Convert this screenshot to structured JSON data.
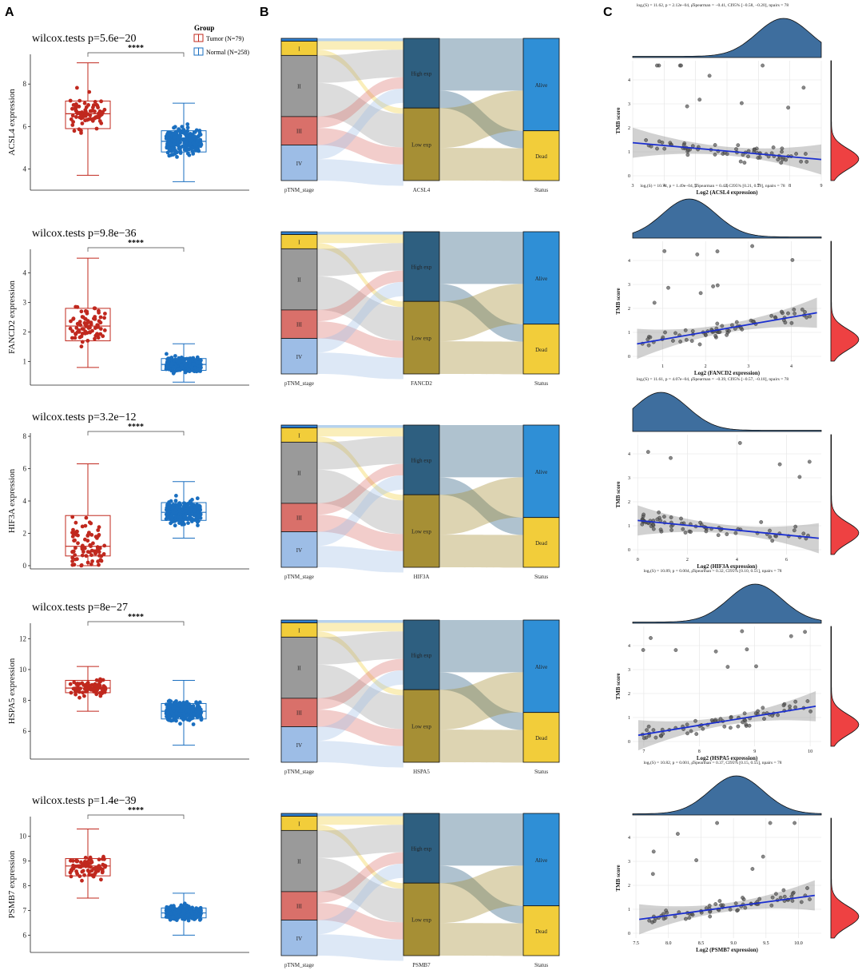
{
  "panel_labels": [
    "A",
    "B",
    "C"
  ],
  "colors": {
    "tumor": "#c0281e",
    "normal": "#1a6fc0",
    "stage_I": "#f2cd3a",
    "stage_II": "#9a9a9a",
    "stage_III": "#d9706a",
    "stage_IV": "#9dbde6",
    "stage_top": "#2f7fcf",
    "high_exp": "#2e5f80",
    "low_exp": "#a68f35",
    "alive": "#2f8fd6",
    "dead": "#f2cd3a",
    "density_top": "#3e6e9e",
    "density_right": "#ee4142",
    "fit_line": "#1b2fd0"
  },
  "legend": {
    "title": "Group",
    "items": [
      "Tumor (N=79)",
      "Normal (N=258)"
    ]
  },
  "chart_data": [
    {
      "panel": "A",
      "type": "box",
      "gene": "ACSL4",
      "title": "wilcox.tests p=5.6e−20",
      "signif": "****",
      "ylabel": "ACSL4 expression",
      "ylim": [
        3,
        9.4
      ],
      "yticks": [
        "4",
        "6",
        "8"
      ],
      "xcategories": [
        "Tumor",
        "Normal"
      ],
      "box": [
        {
          "group": "Tumor",
          "min": 3.7,
          "q1": 5.9,
          "median": 6.6,
          "q3": 7.2,
          "max": 9.0
        },
        {
          "group": "Normal",
          "min": 3.4,
          "q1": 4.8,
          "median": 5.3,
          "q3": 5.8,
          "max": 7.1
        }
      ]
    },
    {
      "panel": "A",
      "type": "box",
      "gene": "FANCD2",
      "title": "wilcox.tests p=9.8e−36",
      "signif": "****",
      "ylabel": "FANCD2 expression",
      "ylim": [
        0.2,
        4.8
      ],
      "yticks": [
        "1",
        "2",
        "3",
        "4"
      ],
      "xcategories": [
        "Tumor",
        "Normal"
      ],
      "box": [
        {
          "group": "Tumor",
          "min": 0.8,
          "q1": 1.7,
          "median": 2.2,
          "q3": 2.8,
          "max": 4.5
        },
        {
          "group": "Normal",
          "min": 0.3,
          "q1": 0.7,
          "median": 0.9,
          "q3": 1.1,
          "max": 1.6
        }
      ]
    },
    {
      "panel": "A",
      "type": "box",
      "gene": "HIF3A",
      "title": "wilcox.tests p=3.2e−12",
      "signif": "****",
      "ylabel": "HIF3A expression",
      "ylim": [
        -0.2,
        8.2
      ],
      "yticks": [
        "0",
        "2",
        "4",
        "6",
        "8"
      ],
      "xcategories": [
        "Tumor",
        "Normal"
      ],
      "box": [
        {
          "group": "Tumor",
          "min": 0.0,
          "q1": 0.6,
          "median": 1.2,
          "q3": 3.1,
          "max": 6.3
        },
        {
          "group": "Normal",
          "min": 1.7,
          "q1": 2.8,
          "median": 3.3,
          "q3": 3.9,
          "max": 5.2
        }
      ]
    },
    {
      "panel": "A",
      "type": "box",
      "gene": "HSPA5",
      "title": "wilcox.tests p=8e−27",
      "signif": "****",
      "ylabel": "HSPA5 expression",
      "ylim": [
        4.2,
        13
      ],
      "yticks": [
        "6",
        "8",
        "10",
        "12"
      ],
      "xcategories": [
        "Tumor",
        "Normal"
      ],
      "box": [
        {
          "group": "Tumor",
          "min": 7.3,
          "q1": 8.5,
          "median": 8.8,
          "q3": 9.3,
          "max": 10.2
        },
        {
          "group": "Normal",
          "min": 5.1,
          "q1": 6.8,
          "median": 7.3,
          "q3": 7.8,
          "max": 9.3
        }
      ]
    },
    {
      "panel": "A",
      "type": "box",
      "gene": "PSMB7",
      "title": "wilcox.tests p=1.4e−39",
      "signif": "****",
      "ylabel": "PSMB7 expression",
      "ylim": [
        5.3,
        10.8
      ],
      "yticks": [
        "6",
        "7",
        "8",
        "9",
        "10"
      ],
      "xcategories": [
        "Tumor",
        "Normal"
      ],
      "box": [
        {
          "group": "Tumor",
          "min": 7.5,
          "q1": 8.4,
          "median": 8.8,
          "q3": 9.1,
          "max": 10.3
        },
        {
          "group": "Normal",
          "min": 6.0,
          "q1": 6.7,
          "median": 6.9,
          "q3": 7.1,
          "max": 7.7
        }
      ]
    },
    {
      "panel": "B",
      "type": "sankey",
      "gene": "ACSL4",
      "axis_labels": [
        "pTNM_stage",
        "ACSL4",
        "Status"
      ],
      "stage": {
        "labels": [
          "I",
          "II",
          "III",
          "IV"
        ],
        "fractions": [
          0.02,
          0.1,
          0.43,
          0.2,
          0.25
        ]
      },
      "expr": {
        "labels": [
          "High exp",
          "Low exp"
        ],
        "fractions": [
          0.49,
          0.51
        ]
      },
      "status": {
        "labels": [
          "Alive",
          "Dead"
        ],
        "fractions": [
          0.65,
          0.35
        ]
      }
    },
    {
      "panel": "B",
      "type": "sankey",
      "gene": "FANCD2",
      "axis_labels": [
        "pTNM_stage",
        "FANCD2",
        "Status"
      ],
      "stage": {
        "labels": [
          "I",
          "II",
          "III",
          "IV"
        ],
        "fractions": [
          0.02,
          0.1,
          0.43,
          0.2,
          0.25
        ]
      },
      "expr": {
        "labels": [
          "High exp",
          "Low exp"
        ],
        "fractions": [
          0.49,
          0.51
        ]
      },
      "status": {
        "labels": [
          "Alive",
          "Dead"
        ],
        "fractions": [
          0.65,
          0.35
        ]
      }
    },
    {
      "panel": "B",
      "type": "sankey",
      "gene": "HIF3A",
      "axis_labels": [
        "pTNM_stage",
        "HIF3A",
        "Status"
      ],
      "stage": {
        "labels": [
          "I",
          "II",
          "III",
          "IV"
        ],
        "fractions": [
          0.02,
          0.1,
          0.43,
          0.2,
          0.25
        ]
      },
      "expr": {
        "labels": [
          "High exp",
          "Low exp"
        ],
        "fractions": [
          0.49,
          0.51
        ]
      },
      "status": {
        "labels": [
          "Alive",
          "Dead"
        ],
        "fractions": [
          0.65,
          0.35
        ]
      }
    },
    {
      "panel": "B",
      "type": "sankey",
      "gene": "HSPA5",
      "axis_labels": [
        "pTNM_stage",
        "HSPA5",
        "Status"
      ],
      "stage": {
        "labels": [
          "I",
          "II",
          "III",
          "IV"
        ],
        "fractions": [
          0.02,
          0.1,
          0.43,
          0.2,
          0.25
        ]
      },
      "expr": {
        "labels": [
          "High exp",
          "Low exp"
        ],
        "fractions": [
          0.49,
          0.51
        ]
      },
      "status": {
        "labels": [
          "Alive",
          "Dead"
        ],
        "fractions": [
          0.65,
          0.35
        ]
      }
    },
    {
      "panel": "B",
      "type": "sankey",
      "gene": "PSMB7",
      "axis_labels": [
        "pTNM_stage",
        "PSMB7",
        "Status"
      ],
      "stage": {
        "labels": [
          "I",
          "II",
          "III",
          "IV"
        ],
        "fractions": [
          0.02,
          0.1,
          0.43,
          0.2,
          0.25
        ]
      },
      "expr": {
        "labels": [
          "High exp",
          "Low exp"
        ],
        "fractions": [
          0.49,
          0.51
        ]
      },
      "status": {
        "labels": [
          "Alive",
          "Dead"
        ],
        "fractions": [
          0.65,
          0.35
        ]
      }
    },
    {
      "panel": "C",
      "type": "scatter",
      "gene": "ACSL4",
      "stat": "logₑ(S) = 11.62, p = 2.12e−04, ρ̂Spearman = −0.41, CI95% [−0.58, −0.20], npairs = 78",
      "xlabel": "Log2 (ACSL4 expression)",
      "ylabel": "TMB score",
      "xlim": [
        3,
        9
      ],
      "ylim": [
        -0.2,
        4.8
      ],
      "xticks": [
        "3",
        "4",
        "5",
        "6",
        "7",
        "8",
        "9"
      ],
      "yticks": [
        "0",
        "1",
        "2",
        "3",
        "4"
      ],
      "fit": {
        "x0": 3,
        "y0": 1.38,
        "x1": 9,
        "y1": 0.68
      },
      "density_top_peak": 0.8,
      "density_right_peak": 0.3
    },
    {
      "panel": "C",
      "type": "scatter",
      "gene": "FANCD2",
      "stat": "logₑ(S) = 10.74, p = 1.49e−04, ρ̂Spearman = 0.42, CI95% [0.21, 0.59], npairs = 78",
      "xlabel": "Log2 (FANCD2 expression)",
      "ylabel": "TMB score",
      "xlim": [
        0.3,
        4.7
      ],
      "ylim": [
        -0.2,
        4.8
      ],
      "xticks": [
        "1",
        "2",
        "3",
        "4"
      ],
      "yticks": [
        "0",
        "1",
        "2",
        "3",
        "4"
      ],
      "fit": {
        "x0": 0.4,
        "y0": 0.52,
        "x1": 4.6,
        "y1": 1.82
      },
      "density_top_peak": 0.3,
      "density_right_peak": 0.3
    },
    {
      "panel": "C",
      "type": "scatter",
      "gene": "HIF3A",
      "stat": "logₑ(S) = 11.61, p = 4.07e−04, ρ̂Spearman = −0.39, CI95% [−0.57, −0.18], npairs = 78",
      "xlabel": "Log2 (HIF3A expression)",
      "ylabel": "TMB score",
      "xlim": [
        -0.2,
        7.4
      ],
      "ylim": [
        -0.2,
        4.8
      ],
      "xticks": [
        "0",
        "2",
        "4",
        "6"
      ],
      "yticks": [
        "0",
        "1",
        "2",
        "3",
        "4"
      ],
      "fit": {
        "x0": 0,
        "y0": 1.22,
        "x1": 7.3,
        "y1": 0.48
      },
      "density_top_peak": 0.15,
      "density_right_peak": 0.3
    },
    {
      "panel": "C",
      "type": "scatter",
      "gene": "HSPA5",
      "stat": "logₑ(S) = 10.89, p = 0.004, ρ̂Spearman = 0.32, CI95% [0.10, 0.51], npairs = 78",
      "xlabel": "Log2 (HSPA5 expression)",
      "ylabel": "TMB score",
      "xlim": [
        6.8,
        10.2
      ],
      "ylim": [
        -0.2,
        4.8
      ],
      "xticks": [
        "7",
        "8",
        "9",
        "10"
      ],
      "yticks": [
        "0",
        "1",
        "2",
        "3",
        "4"
      ],
      "fit": {
        "x0": 6.9,
        "y0": 0.26,
        "x1": 10.1,
        "y1": 1.47
      },
      "density_top_peak": 0.65,
      "density_right_peak": 0.3
    },
    {
      "panel": "C",
      "type": "scatter",
      "gene": "PSMB7",
      "stat": "logₑ(S) = 10.82, p = 0.001, ρ̂Spearman = 0.37, CI95% [0.15, 0.55], npairs = 78",
      "xlabel": "Log2 (PSMB7 expression)",
      "ylabel": "TMB score",
      "xlim": [
        7.45,
        10.35
      ],
      "ylim": [
        -0.2,
        4.8
      ],
      "xticks": [
        "7.5",
        "8.0",
        "8.5",
        "9.0",
        "9.5",
        "10.0"
      ],
      "yticks": [
        "0",
        "1",
        "2",
        "3",
        "4"
      ],
      "fit": {
        "x0": 7.55,
        "y0": 0.58,
        "x1": 10.25,
        "y1": 1.58
      },
      "density_top_peak": 0.55,
      "density_right_peak": 0.3
    }
  ]
}
